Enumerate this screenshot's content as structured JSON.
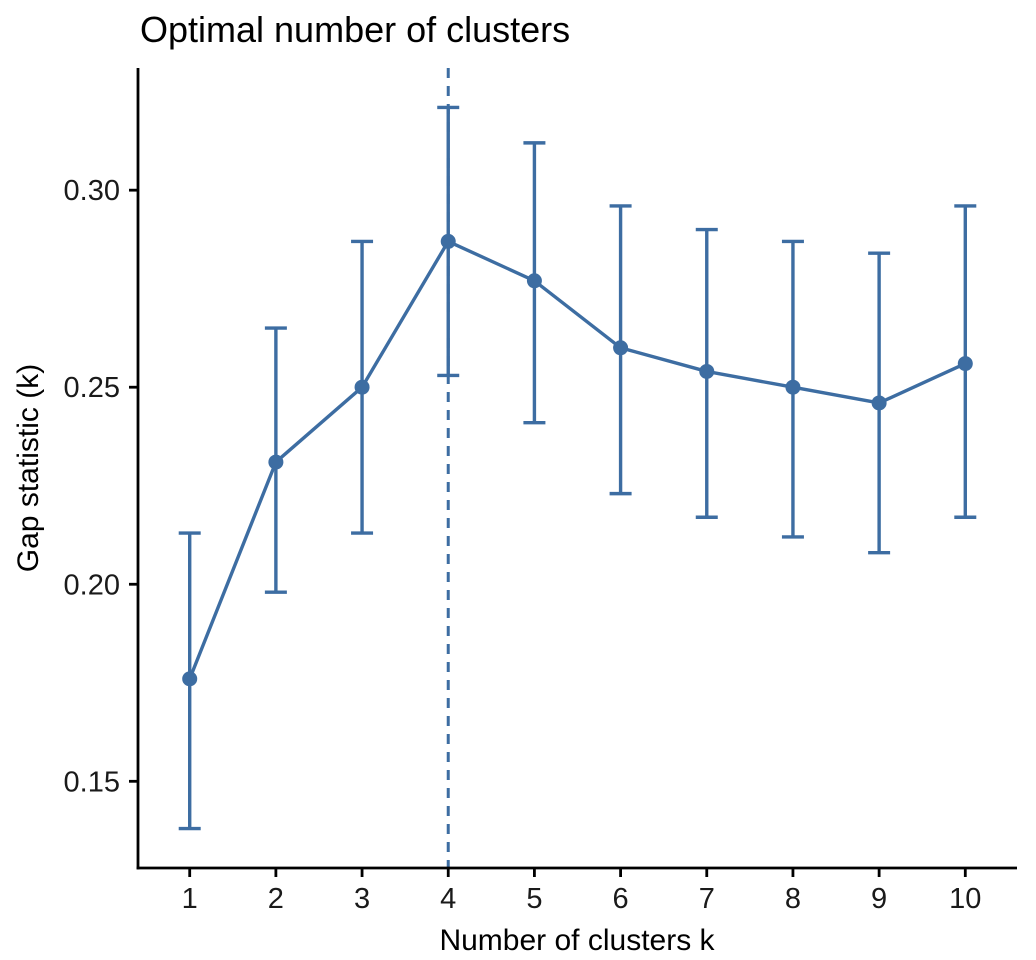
{
  "chart_data": {
    "type": "line",
    "title": "Optimal number of clusters",
    "xlabel": "Number of clusters k",
    "ylabel": "Gap statistic (k)",
    "x": [
      1,
      2,
      3,
      4,
      5,
      6,
      7,
      8,
      9,
      10
    ],
    "x_tick_labels": [
      "1",
      "2",
      "3",
      "4",
      "5",
      "6",
      "7",
      "8",
      "9",
      "10"
    ],
    "y_ticks": [
      0.15,
      0.2,
      0.25,
      0.3
    ],
    "y_tick_labels": [
      "0.15",
      "0.20",
      "0.25",
      "0.30"
    ],
    "series": [
      {
        "name": "Gap statistic",
        "values": [
          0.176,
          0.231,
          0.25,
          0.287,
          0.277,
          0.26,
          0.254,
          0.25,
          0.246,
          0.256
        ],
        "ymin": [
          0.138,
          0.198,
          0.213,
          0.253,
          0.241,
          0.223,
          0.217,
          0.212,
          0.208,
          0.217
        ],
        "ymax": [
          0.213,
          0.265,
          0.287,
          0.321,
          0.312,
          0.296,
          0.29,
          0.287,
          0.284,
          0.296
        ]
      }
    ],
    "vline_x": 4,
    "vline_style": "dashed",
    "xlim": [
      0.4,
      10.6
    ],
    "ylim": [
      0.128,
      0.331
    ],
    "grid": false,
    "legend": "none",
    "marker": "circle",
    "error_bars": true,
    "line_color": "#3D6DA2",
    "axis_color": "#000000",
    "text_color": "#1a1a1a",
    "background": "#FFFFFF"
  }
}
